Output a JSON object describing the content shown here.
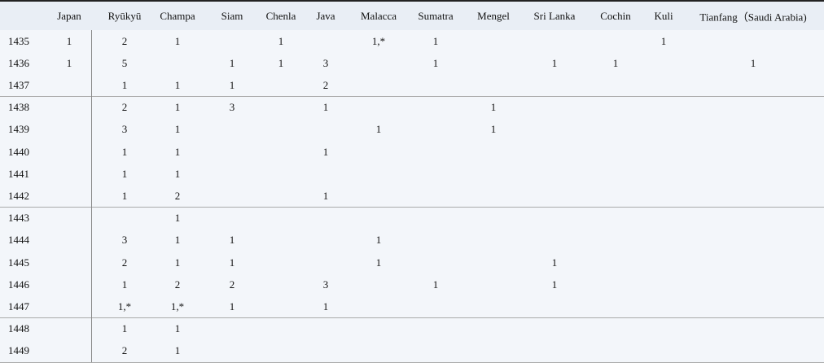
{
  "columns": [
    "Japan",
    "Ryūkyū",
    "Champa",
    "Siam",
    "Chenla",
    "Java",
    "Malacca",
    "Sumatra",
    "Mengel",
    "Sri Lanka",
    "Cochin",
    "Kuli",
    "Tianfang（Saudi Arabia)"
  ],
  "rows": [
    {
      "year": "1435",
      "values": [
        "1",
        "2",
        "1",
        "",
        "1",
        "",
        "1,*",
        "1",
        "",
        "",
        "",
        "1",
        ""
      ]
    },
    {
      "year": "1436",
      "values": [
        "1",
        "5",
        "",
        "1",
        "1",
        "3",
        "",
        "1",
        "",
        "1",
        "1",
        "",
        "1"
      ]
    },
    {
      "year": "1437",
      "values": [
        "",
        "1",
        "1",
        "1",
        "",
        "2",
        "",
        "",
        "",
        "",
        "",
        "",
        ""
      ]
    },
    {
      "year": "1438",
      "values": [
        "",
        "2",
        "1",
        "3",
        "",
        "1",
        "",
        "",
        "1",
        "",
        "",
        "",
        ""
      ]
    },
    {
      "year": "1439",
      "values": [
        "",
        "3",
        "1",
        "",
        "",
        "",
        "1",
        "",
        "1",
        "",
        "",
        "",
        ""
      ]
    },
    {
      "year": "1440",
      "values": [
        "",
        "1",
        "1",
        "",
        "",
        "1",
        "",
        "",
        "",
        "",
        "",
        "",
        ""
      ]
    },
    {
      "year": "1441",
      "values": [
        "",
        "1",
        "1",
        "",
        "",
        "",
        "",
        "",
        "",
        "",
        "",
        "",
        ""
      ]
    },
    {
      "year": "1442",
      "values": [
        "",
        "1",
        "2",
        "",
        "",
        "1",
        "",
        "",
        "",
        "",
        "",
        "",
        ""
      ]
    },
    {
      "year": "1443",
      "values": [
        "",
        "",
        "1",
        "",
        "",
        "",
        "",
        "",
        "",
        "",
        "",
        "",
        ""
      ]
    },
    {
      "year": "1444",
      "values": [
        "",
        "3",
        "1",
        "1",
        "",
        "",
        "1",
        "",
        "",
        "",
        "",
        "",
        ""
      ]
    },
    {
      "year": "1445",
      "values": [
        "",
        "2",
        "1",
        "1",
        "",
        "",
        "1",
        "",
        "",
        "1",
        "",
        "",
        ""
      ]
    },
    {
      "year": "1446",
      "values": [
        "",
        "1",
        "2",
        "2",
        "",
        "3",
        "",
        "1",
        "",
        "1",
        "",
        "",
        ""
      ]
    },
    {
      "year": "1447",
      "values": [
        "",
        "1,*",
        "1,*",
        "1",
        "",
        "1",
        "",
        "",
        "",
        "",
        "",
        "",
        ""
      ]
    },
    {
      "year": "1448",
      "values": [
        "",
        "1",
        "1",
        "",
        "",
        "",
        "",
        "",
        "",
        "",
        "",
        "",
        ""
      ]
    },
    {
      "year": "1449",
      "values": [
        "",
        "2",
        "1",
        "",
        "",
        "",
        "",
        "",
        "",
        "",
        "",
        "",
        ""
      ]
    }
  ]
}
